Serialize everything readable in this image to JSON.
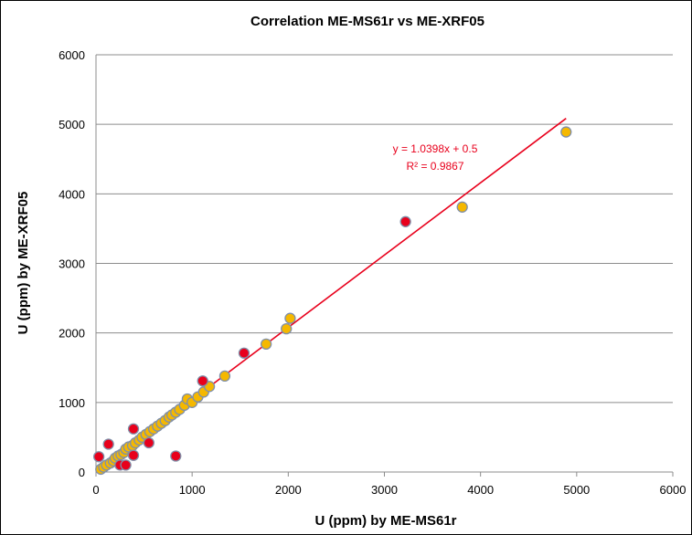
{
  "chart_data": {
    "type": "scatter",
    "title": "Correlation  ME-MS61r vs ME-XRF05",
    "xlabel": "U (ppm) by ME-MS61r",
    "ylabel": "U (ppm)  by ME-XRF05",
    "xlim": [
      0,
      6000
    ],
    "ylim": [
      0,
      6000
    ],
    "x_ticks": [
      "0",
      "1000",
      "2000",
      "3000",
      "4000",
      "5000",
      "6000"
    ],
    "y_ticks": [
      "0",
      "1000",
      "2000",
      "3000",
      "4000",
      "5000",
      "6000"
    ],
    "grid": "horizontal",
    "legend": "none",
    "colors": {
      "yellow_point": "#F5B800",
      "red_point": "#E8001C",
      "point_edge": "#7F8FA9",
      "trendline": "#E8001C",
      "gridline": "#8C8C8C"
    },
    "series": [
      {
        "color": "yellow",
        "points": [
          [
            50,
            40
          ],
          [
            80,
            70
          ],
          [
            110,
            100
          ],
          [
            150,
            130
          ],
          [
            180,
            160
          ],
          [
            200,
            200
          ],
          [
            230,
            230
          ],
          [
            260,
            250
          ],
          [
            290,
            280
          ],
          [
            310,
            330
          ],
          [
            340,
            360
          ],
          [
            380,
            380
          ],
          [
            410,
            420
          ],
          [
            450,
            460
          ],
          [
            480,
            500
          ],
          [
            520,
            540
          ],
          [
            560,
            580
          ],
          [
            600,
            620
          ],
          [
            640,
            660
          ],
          [
            680,
            700
          ],
          [
            720,
            740
          ],
          [
            760,
            790
          ],
          [
            790,
            820
          ],
          [
            830,
            860
          ],
          [
            870,
            900
          ],
          [
            920,
            960
          ],
          [
            950,
            1050
          ],
          [
            1000,
            1000
          ],
          [
            1060,
            1080
          ],
          [
            1120,
            1150
          ],
          [
            1180,
            1230
          ],
          [
            1340,
            1380
          ],
          [
            1770,
            1840
          ],
          [
            1980,
            2060
          ],
          [
            2020,
            2210
          ],
          [
            3810,
            3810
          ],
          [
            4890,
            4890
          ]
        ]
      },
      {
        "color": "red",
        "points": [
          [
            30,
            220
          ],
          [
            130,
            400
          ],
          [
            250,
            100
          ],
          [
            310,
            100
          ],
          [
            390,
            620
          ],
          [
            390,
            240
          ],
          [
            550,
            420
          ],
          [
            830,
            230
          ],
          [
            1110,
            1310
          ],
          [
            1540,
            1710
          ],
          [
            3220,
            3600
          ]
        ]
      }
    ],
    "trendline": {
      "slope": 1.0398,
      "intercept": 0.5,
      "x_range": [
        0,
        4890
      ],
      "equation": "y = 1.0398x + 0.5",
      "r2": "R² = 0.9867",
      "color": "#E8001C"
    }
  }
}
